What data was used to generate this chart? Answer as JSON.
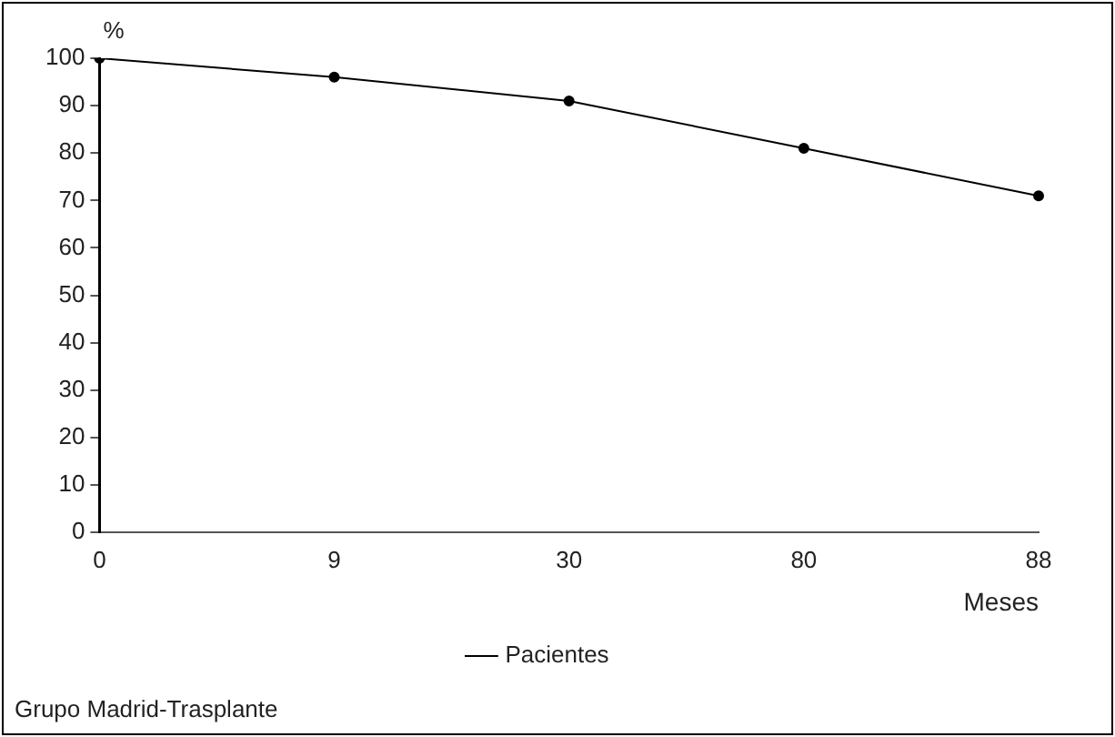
{
  "chart_data": {
    "type": "line",
    "ylabel": "%",
    "xlabel": "Meses",
    "categories": [
      "0",
      "9",
      "30",
      "80",
      "88"
    ],
    "series": [
      {
        "name": "Pacientes",
        "color": "#000000",
        "values": [
          100,
          96,
          91,
          81,
          71
        ]
      }
    ],
    "ylim": [
      0,
      100
    ],
    "yticks": [
      0,
      10,
      20,
      30,
      40,
      50,
      60,
      70,
      80,
      90,
      100
    ],
    "grid": false,
    "legend": "bottom",
    "marker": "circle",
    "line_style": "solid",
    "annotations": [
      "Grupo Madrid-Trasplante"
    ]
  }
}
